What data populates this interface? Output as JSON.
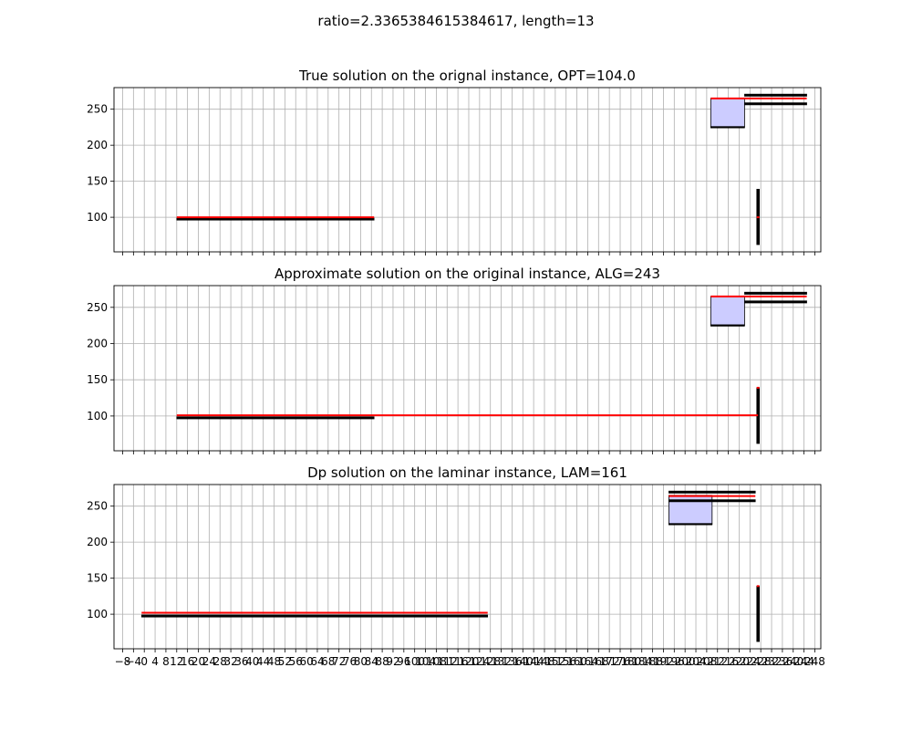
{
  "suptitle": "ratio=2.3365384615384617, length=13",
  "chart_data": [
    {
      "type": "other",
      "title": "True solution on the orignal instance, OPT=104.0",
      "xlim": [
        -11.2,
        250.2
      ],
      "ylim": [
        52,
        280
      ],
      "yticks": [
        100,
        150,
        200,
        250
      ],
      "grid": true,
      "show_x_tick_labels": false,
      "shaded_regions": [
        {
          "x": [
            209.5,
            222
          ],
          "y": [
            225,
            265
          ]
        }
      ],
      "black_bars": [
        {
          "x": [
            12,
            85
          ],
          "y": [
            96,
            99
          ]
        },
        {
          "x": [
            209.5,
            222
          ],
          "y": [
            224,
            226
          ]
        },
        {
          "x": [
            222,
            245
          ],
          "y": [
            256,
            259
          ]
        },
        {
          "x": [
            222,
            245
          ],
          "y": [
            268,
            271
          ]
        },
        {
          "x": [
            226.5,
            227.5
          ],
          "y": [
            62,
            139
          ]
        }
      ],
      "red_segments": [
        {
          "x": [
            12,
            85
          ],
          "y": [
            100,
            100
          ]
        },
        {
          "x": [
            209.5,
            245
          ],
          "y": [
            265,
            265
          ]
        },
        {
          "x": [
            226.5,
            227.5
          ],
          "y": [
            100,
            100
          ]
        }
      ]
    },
    {
      "type": "other",
      "title": "Approximate solution on the original instance, ALG=243",
      "xlim": [
        -11.2,
        250.2
      ],
      "ylim": [
        52,
        280
      ],
      "yticks": [
        100,
        150,
        200,
        250
      ],
      "grid": true,
      "show_x_tick_labels": false,
      "shaded_regions": [
        {
          "x": [
            209.5,
            222
          ],
          "y": [
            225,
            265
          ]
        }
      ],
      "black_bars": [
        {
          "x": [
            12,
            85
          ],
          "y": [
            96,
            99
          ]
        },
        {
          "x": [
            209.5,
            222
          ],
          "y": [
            224,
            226
          ]
        },
        {
          "x": [
            222,
            245
          ],
          "y": [
            256,
            259
          ]
        },
        {
          "x": [
            222,
            245
          ],
          "y": [
            268,
            271
          ]
        },
        {
          "x": [
            226.5,
            227.5
          ],
          "y": [
            62,
            139
          ]
        }
      ],
      "red_segments": [
        {
          "x": [
            12,
            227
          ],
          "y": [
            101,
            101
          ]
        },
        {
          "x": [
            209.5,
            245
          ],
          "y": [
            265,
            265
          ]
        },
        {
          "x": [
            226.5,
            227.5
          ],
          "y": [
            139,
            139
          ]
        }
      ]
    },
    {
      "type": "other",
      "title": "Dp solution on the laminar instance, LAM=161",
      "xlim": [
        -11.2,
        250.2
      ],
      "ylim": [
        52,
        280
      ],
      "yticks": [
        100,
        150,
        200,
        250
      ],
      "grid": true,
      "show_x_tick_labels": true,
      "shaded_regions": [
        {
          "x": [
            194,
            210
          ],
          "y": [
            225,
            265
          ]
        }
      ],
      "black_bars": [
        {
          "x": [
            -1,
            127
          ],
          "y": [
            96,
            99
          ]
        },
        {
          "x": [
            194,
            210
          ],
          "y": [
            224,
            226
          ]
        },
        {
          "x": [
            194,
            226
          ],
          "y": [
            256,
            259
          ]
        },
        {
          "x": [
            194,
            226
          ],
          "y": [
            268,
            271
          ]
        },
        {
          "x": [
            226.5,
            227.5
          ],
          "y": [
            62,
            139
          ]
        }
      ],
      "red_segments": [
        {
          "x": [
            -1,
            127
          ],
          "y": [
            102,
            102
          ]
        },
        {
          "x": [
            194,
            226
          ],
          "y": [
            264,
            264
          ]
        },
        {
          "x": [
            226.5,
            227.5
          ],
          "y": [
            139,
            139
          ]
        }
      ]
    }
  ],
  "x_axis": {
    "tick_start": -8,
    "tick_step": 4,
    "tick_count": 65,
    "tick_labels": [
      "−8",
      "−4",
      "0",
      "4",
      "8",
      "12",
      "16",
      "20",
      "24",
      "28",
      "32",
      "36",
      "40",
      "44",
      "48",
      "52",
      "56",
      "60",
      "64",
      "68",
      "72",
      "76",
      "80",
      "84",
      "88",
      "92",
      "96",
      "100",
      "104",
      "108",
      "112",
      "116",
      "120",
      "124",
      "128",
      "132",
      "136",
      "140",
      "144",
      "148",
      "152",
      "156",
      "160",
      "164",
      "168",
      "172",
      "176",
      "180",
      "184",
      "188",
      "192",
      "196",
      "200",
      "204",
      "208",
      "212",
      "216",
      "220",
      "224",
      "228",
      "232",
      "236",
      "240",
      "244",
      "248"
    ]
  },
  "colors": {
    "grid": "#b0b0b0",
    "shade_fill": "#ccccff",
    "shade_edge": "#000000",
    "red_line": "#ff0000",
    "black_bar": "#000000",
    "axes_edge": "#000000"
  }
}
